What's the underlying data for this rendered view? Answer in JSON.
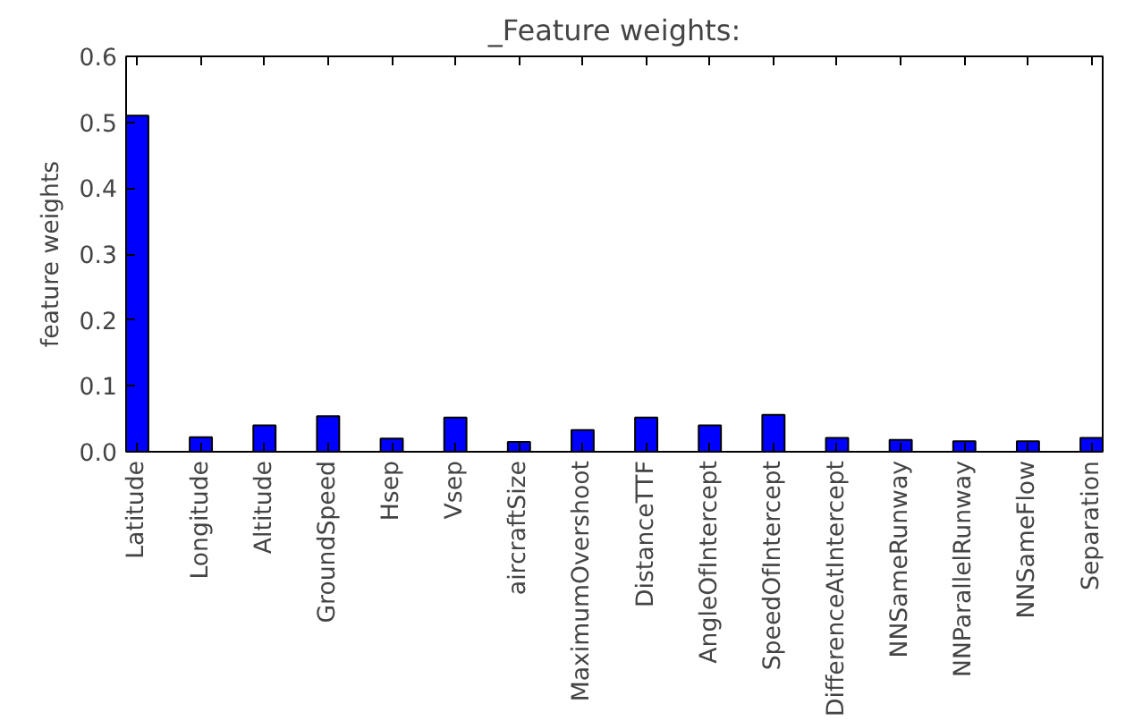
{
  "chart_data": {
    "type": "bar",
    "title": "_Feature weights:",
    "ylabel": "feature weights",
    "categories": [
      "Latitude",
      "Longitude",
      "Altitude",
      "GroundSpeed",
      "Hsep",
      "Vsep",
      "aircraftSize",
      "MaximumOvershoot",
      "DistanceTTF",
      "AngleOfIntercept",
      "SpeedOfIntercept",
      "DifferenceAtIntercept",
      "NNSameRunway",
      "NNParallelRunway",
      "NNSameFlow",
      "Separation"
    ],
    "values": [
      0.51,
      0.022,
      0.04,
      0.054,
      0.02,
      0.052,
      0.015,
      0.033,
      0.052,
      0.04,
      0.056,
      0.021,
      0.018,
      0.016,
      0.016,
      0.021
    ],
    "color": "#0000ff",
    "ylim": [
      0,
      0.6
    ],
    "yticks": [
      {
        "value": 0,
        "label": "0.0"
      },
      0.1,
      0.2,
      0.3,
      0.4,
      0.5,
      0.6
    ],
    "grid": false
  }
}
